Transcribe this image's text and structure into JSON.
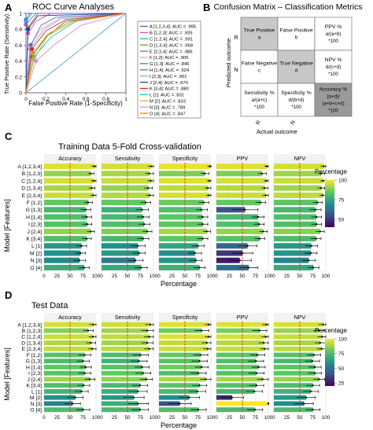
{
  "panel_letters": {
    "a": "A",
    "b": "B",
    "c": "C",
    "d": "D"
  },
  "colors": {
    "gradient": [
      "#440154",
      "#3b528b",
      "#21918c",
      "#5ec962",
      "#fde725"
    ],
    "grid": "#e5e5e5",
    "refline": "#c0392b",
    "bar_default": "#7ccf58",
    "cm_gray": "#c8c8c8",
    "cm_dark": "#9a9a9a"
  },
  "chart_data": [
    {
      "type": "line",
      "title": "ROC Curve Analyses",
      "xlabel": "False Positive Rate (1-Specificity)",
      "ylabel": "True Positive Rate (Sensitivity)",
      "xlim": [
        0,
        1
      ],
      "ylim": [
        0,
        1
      ],
      "ticks": [
        "0",
        "0.2",
        "0.4",
        "0.6",
        "0.8",
        "1"
      ],
      "legend_position": "right",
      "series": [
        {
          "name": "A [1,2,3,4]: AUC = .995",
          "color": "#2d6fd6",
          "points": [
            [
              0,
              0
            ],
            [
              0,
              0.92
            ],
            [
              0.04,
              1
            ],
            [
              1,
              1
            ]
          ]
        },
        {
          "name": "B [1,2,3]: AUC = .926",
          "color": "#e34aa8",
          "points": [
            [
              0,
              0
            ],
            [
              0.02,
              0.75
            ],
            [
              0.1,
              0.9
            ],
            [
              0.25,
              1
            ],
            [
              1,
              1
            ]
          ]
        },
        {
          "name": "C [1,2,4]: AUC = .991",
          "color": "#27a9e1",
          "points": [
            [
              0,
              0
            ],
            [
              0,
              0.9
            ],
            [
              0.06,
              1
            ],
            [
              1,
              1
            ]
          ]
        },
        {
          "name": "D [1,3,4]: AUC = .968",
          "color": "#8c8c2a",
          "points": [
            [
              0,
              0
            ],
            [
              0.02,
              0.82
            ],
            [
              0.12,
              1
            ],
            [
              1,
              1
            ]
          ]
        },
        {
          "name": "E [2,3,4]: AUC = .986",
          "color": "#9e55c9",
          "points": [
            [
              0,
              0
            ],
            [
              0,
              0.86
            ],
            [
              0.1,
              1
            ],
            [
              1,
              1
            ]
          ]
        },
        {
          "name": "F [1,2]: AUC = .905",
          "color": "#f49bd4",
          "points": [
            [
              0,
              0
            ],
            [
              0.04,
              0.6
            ],
            [
              0.15,
              0.8
            ],
            [
              0.35,
              0.95
            ],
            [
              1,
              1
            ]
          ]
        },
        {
          "name": "G [1,3]: AUC = .845",
          "color": "#2ca02c",
          "points": [
            [
              0,
              0
            ],
            [
              0.06,
              0.45
            ],
            [
              0.2,
              0.7
            ],
            [
              0.4,
              0.9
            ],
            [
              1,
              1
            ]
          ]
        },
        {
          "name": "H [1,4]: AUC = .924",
          "color": "#4e79a7",
          "points": [
            [
              0,
              0
            ],
            [
              0.05,
              0.6
            ],
            [
              0.15,
              0.85
            ],
            [
              0.3,
              0.95
            ],
            [
              1,
              1
            ]
          ]
        },
        {
          "name": "I [2,3]: AUC = .901",
          "color": "#a0a0d0",
          "points": [
            [
              0,
              0
            ],
            [
              0.04,
              0.55
            ],
            [
              0.18,
              0.8
            ],
            [
              0.35,
              0.93
            ],
            [
              1,
              1
            ]
          ]
        },
        {
          "name": "J [2,4]: AUC = .970",
          "color": "#0a4f9c",
          "points": [
            [
              0,
              0
            ],
            [
              0.02,
              0.8
            ],
            [
              0.12,
              0.97
            ],
            [
              1,
              1
            ]
          ]
        },
        {
          "name": "K [3,4]: AUC = .880",
          "color": "#d62728",
          "points": [
            [
              0,
              0
            ],
            [
              0.06,
              0.55
            ],
            [
              0.2,
              0.78
            ],
            [
              0.4,
              0.92
            ],
            [
              1,
              1
            ]
          ]
        },
        {
          "name": "L [1]: AUC = .831",
          "color": "#17becf",
          "points": [
            [
              0,
              0
            ],
            [
              0.08,
              0.45
            ],
            [
              0.25,
              0.7
            ],
            [
              0.5,
              0.9
            ],
            [
              1,
              1
            ]
          ]
        },
        {
          "name": "M [2]: AUC = .833",
          "color": "#bcbd22",
          "points": [
            [
              0,
              0
            ],
            [
              0.08,
              0.42
            ],
            [
              0.22,
              0.72
            ],
            [
              0.48,
              0.9
            ],
            [
              1,
              1
            ]
          ]
        },
        {
          "name": "N [3]: AUC = .789",
          "color": "#d98cd9",
          "points": [
            [
              0,
              0
            ],
            [
              0.1,
              0.4
            ],
            [
              0.3,
              0.62
            ],
            [
              0.55,
              0.85
            ],
            [
              1,
              1
            ]
          ]
        },
        {
          "name": "O [4]: AUC = .847",
          "color": "#ff7f0e",
          "points": [
            [
              0,
              0
            ],
            [
              0.07,
              0.5
            ],
            [
              0.22,
              0.74
            ],
            [
              0.45,
              0.9
            ],
            [
              1,
              1
            ]
          ]
        }
      ]
    },
    {
      "type": "table",
      "title": "Confusion Matrix – Classification Metrics",
      "xlabel": "Actual outcome",
      "ylabel": "Predicted outcome",
      "row_labels": [
        "R",
        "N"
      ],
      "col_labels": [
        "R",
        "N"
      ],
      "cells": {
        "tp": [
          "True Positive",
          "a"
        ],
        "fp": [
          "False Positive",
          "b"
        ],
        "ppv": [
          "PPV %",
          "a/(a+b)",
          "*100"
        ],
        "fn": [
          "False Negative",
          "c"
        ],
        "tn": [
          "True Negative",
          "d"
        ],
        "npv": [
          "NPV %",
          "d/(c+d)",
          "*100"
        ],
        "sens": [
          "Sensitivity %",
          "a/(a+c)",
          "*100"
        ],
        "spec": [
          "Specificity %",
          "d/(b+d)",
          "*100"
        ],
        "acc": [
          "Accuracy %",
          "(a+d)/",
          "(a+b+c+d)",
          "*100"
        ]
      }
    },
    {
      "type": "bar",
      "title": "Training Data 5-Fold Cross-validation",
      "xlabel": "Percentage",
      "ylabel": "Model [Features]",
      "xlim": [
        0,
        100
      ],
      "ticks": [
        "0",
        "25",
        "50",
        "75",
        "100"
      ],
      "reference_value": 50,
      "legend": {
        "title": "Percentage",
        "ticks": [
          "100",
          "75",
          "50"
        ],
        "range": [
          40,
          100
        ]
      },
      "categories": [
        "A [1,2,3,4]",
        "B [1,2,3]",
        "C [1,2,4]",
        "D [1,3,4]",
        "E [2,3,4]",
        "F [1,2]",
        "G [1,3]",
        "H [1,4]",
        "I [2,3]",
        "J [2,4]",
        "K [3,4]",
        "L [1]",
        "M [2]",
        "N [3]",
        "O [4]"
      ],
      "series": [
        {
          "name": "Accuracy",
          "values": [
            97,
            90,
            96,
            92,
            95,
            85,
            80,
            82,
            83,
            90,
            82,
            72,
            70,
            68,
            77
          ],
          "errors": [
            6,
            6,
            6,
            6,
            6,
            8,
            10,
            10,
            9,
            7,
            9,
            10,
            10,
            12,
            10
          ]
        },
        {
          "name": "Sensitivity",
          "values": [
            96,
            92,
            95,
            90,
            93,
            85,
            78,
            80,
            82,
            88,
            80,
            70,
            72,
            65,
            76
          ],
          "errors": [
            7,
            8,
            7,
            8,
            7,
            10,
            12,
            12,
            11,
            9,
            11,
            14,
            12,
            15,
            12
          ]
        },
        {
          "name": "Specificity",
          "values": [
            98,
            88,
            97,
            94,
            96,
            86,
            82,
            84,
            84,
            92,
            84,
            75,
            69,
            71,
            78
          ],
          "errors": [
            5,
            8,
            5,
            6,
            5,
            10,
            11,
            10,
            10,
            7,
            10,
            12,
            13,
            12,
            11
          ]
        },
        {
          "name": "PPV",
          "values": [
            97,
            88,
            96,
            93,
            95,
            85,
            55,
            80,
            82,
            90,
            83,
            60,
            50,
            45,
            62
          ],
          "errors": [
            5,
            8,
            5,
            6,
            6,
            10,
            25,
            12,
            10,
            8,
            10,
            18,
            20,
            22,
            18
          ]
        },
        {
          "name": "NPV",
          "values": [
            96,
            91,
            95,
            91,
            94,
            84,
            80,
            82,
            82,
            89,
            81,
            72,
            71,
            67,
            76
          ],
          "errors": [
            6,
            7,
            6,
            7,
            6,
            9,
            11,
            10,
            10,
            8,
            10,
            12,
            12,
            13,
            11
          ]
        }
      ]
    },
    {
      "type": "bar",
      "title": "Test Data",
      "xlabel": "Percentage",
      "ylabel": "Model [Features]",
      "xlim": [
        0,
        100
      ],
      "ticks": [
        "0",
        "25",
        "50",
        "75",
        "100"
      ],
      "reference_value": 50,
      "legend": {
        "title": "Percentage",
        "ticks": [
          "100",
          "75",
          "50",
          "25"
        ],
        "range": [
          20,
          100
        ]
      },
      "categories": [
        "A [1,2,3,4]",
        "B [1,2,3]",
        "C [1,2,4]",
        "D [1,3,4]",
        "E [2,3,4]",
        "F [1,2]",
        "G [1,3]",
        "H [1,4]",
        "I [2,3]",
        "J [2,4]",
        "K [3,4]",
        "L [1]",
        "M [2]",
        "N [3]",
        "O [4]"
      ],
      "series": [
        {
          "name": "Accuracy",
          "values": [
            95,
            85,
            94,
            90,
            93,
            78,
            75,
            80,
            78,
            88,
            76,
            72,
            60,
            55,
            75
          ],
          "errors": [
            8,
            10,
            8,
            9,
            8,
            12,
            12,
            11,
            12,
            10,
            12,
            13,
            15,
            15,
            13
          ]
        },
        {
          "name": "Sensitivity",
          "values": [
            94,
            88,
            92,
            88,
            92,
            75,
            72,
            78,
            80,
            86,
            74,
            70,
            62,
            70,
            74
          ],
          "errors": [
            10,
            12,
            10,
            11,
            10,
            15,
            16,
            14,
            15,
            12,
            15,
            18,
            20,
            20,
            16
          ]
        },
        {
          "name": "Specificity",
          "values": [
            96,
            82,
            96,
            92,
            94,
            80,
            78,
            82,
            76,
            90,
            78,
            74,
            58,
            40,
            76
          ],
          "errors": [
            8,
            14,
            8,
            10,
            9,
            14,
            15,
            13,
            15,
            11,
            14,
            16,
            20,
            22,
            15
          ]
        },
        {
          "name": "PPV",
          "values": [
            96,
            83,
            95,
            91,
            93,
            79,
            76,
            81,
            77,
            89,
            77,
            73,
            30,
            100,
            74
          ],
          "errors": [
            8,
            14,
            8,
            10,
            9,
            14,
            15,
            13,
            15,
            11,
            14,
            16,
            22,
            0,
            15
          ]
        },
        {
          "name": "NPV",
          "values": [
            95,
            87,
            93,
            89,
            92,
            77,
            74,
            79,
            79,
            87,
            75,
            71,
            62,
            58,
            75
          ],
          "errors": [
            9,
            11,
            9,
            10,
            9,
            13,
            14,
            12,
            13,
            11,
            13,
            15,
            18,
            18,
            14
          ]
        }
      ]
    }
  ]
}
